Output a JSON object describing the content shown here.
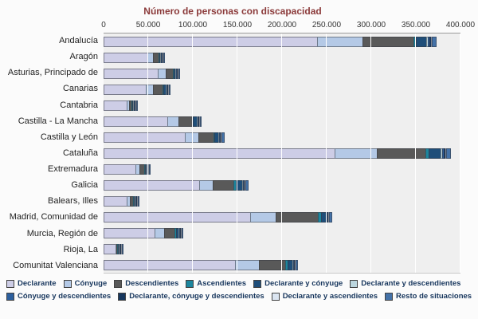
{
  "title": "Número de personas con discapacidad",
  "chart_data": {
    "type": "bar",
    "stacked": true,
    "orientation": "horizontal",
    "title": "Número de personas con discapacidad",
    "xlabel": "",
    "ylabel": "",
    "xlim": [
      0,
      400000
    ],
    "x_ticks": [
      "0",
      "50.000",
      "100.000",
      "150.000",
      "200.000",
      "250.000",
      "300.000",
      "350.000",
      "400.000"
    ],
    "grid": true,
    "legend_position": "bottom",
    "categories": [
      "Andalucía",
      "Aragón",
      "Asturias, Principado de",
      "Canarias",
      "Cantabria",
      "Castilla - La Mancha",
      "Castilla y León",
      "Cataluña",
      "Extremadura",
      "Galicia",
      "Balears, Illes",
      "Madrid, Comunidad de",
      "Murcia, Región de",
      "Rioja, La",
      "Comunitat Valenciana"
    ],
    "series": [
      {
        "name": "Declarante",
        "color": "#cdcde6",
        "values": [
          240000,
          50000,
          62000,
          48000,
          27000,
          72000,
          92000,
          260000,
          37000,
          108000,
          27000,
          165000,
          58000,
          14000,
          148000
        ]
      },
      {
        "name": "Cónyuge",
        "color": "#b4c9e6",
        "values": [
          52000,
          7000,
          9000,
          9000,
          3000,
          14000,
          16000,
          48000,
          5000,
          16000,
          4000,
          30000,
          12000,
          1200,
          28000
        ]
      },
      {
        "name": "Descendientes",
        "color": "#595959",
        "values": [
          58000,
          7000,
          9000,
          12000,
          3500,
          16000,
          18000,
          55000,
          6000,
          24000,
          5000,
          48000,
          12000,
          1300,
          30000
        ]
      },
      {
        "name": "Ascendientes",
        "color": "#1c869e",
        "values": [
          4000,
          1000,
          2000,
          1500,
          500,
          2000,
          2000,
          5000,
          1000,
          4000,
          700,
          4000,
          2500,
          300,
          4000
        ]
      },
      {
        "name": "Declarante y cónyuge",
        "color": "#1f4e79",
        "values": [
          12000,
          2000,
          3000,
          3000,
          1000,
          5000,
          5000,
          14000,
          2000,
          8000,
          1500,
          7000,
          4000,
          500,
          6000
        ]
      },
      {
        "name": "Declarante y descendientes",
        "color": "#bcd6de",
        "values": [
          3000,
          500,
          1000,
          800,
          300,
          1000,
          1000,
          3000,
          500,
          1500,
          400,
          1500,
          800,
          150,
          1200
        ]
      },
      {
        "name": "Cónyuge y descendientes",
        "color": "#2c5f9e",
        "values": [
          2500,
          500,
          500,
          700,
          200,
          800,
          800,
          2500,
          400,
          1000,
          300,
          1200,
          700,
          100,
          1000
        ]
      },
      {
        "name": "Declarante, cónyuge y descendientes",
        "color": "#17375e",
        "values": [
          2500,
          500,
          500,
          500,
          200,
          700,
          700,
          2500,
          300,
          1000,
          300,
          1000,
          500,
          100,
          800
        ]
      },
      {
        "name": "Declarante y ascendientes",
        "color": "#dbe5f1",
        "values": [
          2000,
          500,
          500,
          500,
          300,
          500,
          1000,
          2000,
          300,
          1000,
          300,
          1000,
          500,
          150,
          800
        ]
      },
      {
        "name": "Resto de situaciones",
        "color": "#4472a8",
        "values": [
          5000,
          1000,
          1500,
          1500,
          1000,
          2000,
          3500,
          5000,
          1500,
          3500,
          1500,
          3300,
          2000,
          700,
          3200
        ]
      }
    ]
  }
}
